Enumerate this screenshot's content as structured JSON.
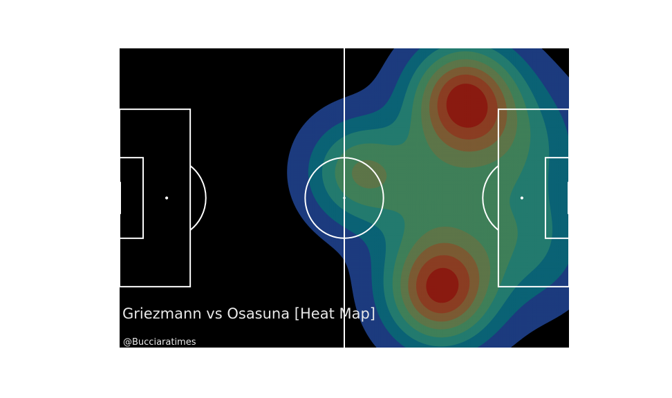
{
  "chart_data": {
    "type": "heatmap",
    "title": "Griezmann vs Osasuna [Heat Map]",
    "credit": "@Bucciaratimes",
    "pitch": {
      "length": 105,
      "width": 68,
      "background": "#000000",
      "line_color": "#ffffff"
    },
    "grid": false,
    "colormap": [
      "#1c3b7e",
      "#0a6275",
      "#237a6e",
      "#3f7f58",
      "#5d7548",
      "#7b5a33",
      "#8a3d22",
      "#8a1a10"
    ],
    "hotspots": [
      {
        "x": 75.0,
        "y": 55.0,
        "intensity": 1.0,
        "spread": 8.5
      },
      {
        "x": 80.5,
        "y": 11.5,
        "intensity": 1.0,
        "spread": 8.5
      },
      {
        "x": 55.5,
        "y": 28.0,
        "intensity": 0.52,
        "spread": 8.0
      },
      {
        "x": 73.0,
        "y": 33.0,
        "intensity": 0.38,
        "spread": 11.0
      },
      {
        "x": 95.0,
        "y": 44.0,
        "intensity": 0.35,
        "spread": 10.0
      },
      {
        "x": 94.0,
        "y": 22.0,
        "intensity": 0.32,
        "spread": 10.0
      }
    ]
  }
}
